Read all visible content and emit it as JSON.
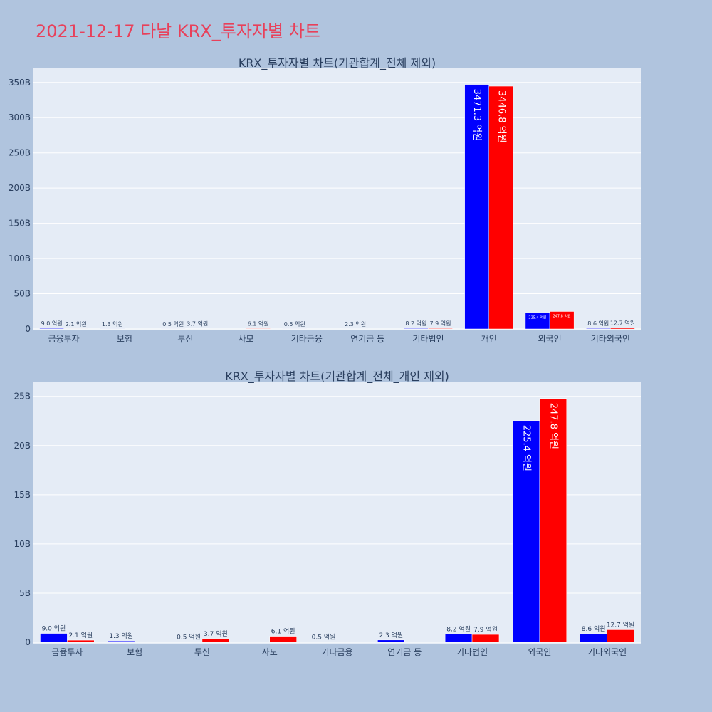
{
  "page": {
    "title": "2021-12-17 다날 KRX_투자자별 차트"
  },
  "colors": {
    "buy": "#0000ff",
    "sell": "#ff0000",
    "plot_bg": "#e5ecf6",
    "page_bg": "#b0c4de",
    "title": "#e8405a"
  },
  "chart_data": [
    {
      "type": "bar",
      "title": "KRX_투자자별 차트(기관합계_전체 제외)",
      "categories": [
        "금융투자",
        "보험",
        "투신",
        "사모",
        "기타금융",
        "연기금 등",
        "기타법인",
        "개인",
        "외국인",
        "기타외국인"
      ],
      "series": [
        {
          "values": [
            900000000,
            130000000,
            50000000,
            0,
            50000000,
            230000000,
            820000000,
            347130000000,
            22540000000,
            860000000
          ],
          "labels": [
            "9.0 억원",
            "1.3 억원",
            "0.5 억원",
            "",
            "0.5 억원",
            "2.3 억원",
            "8.2 억원",
            "3471.3 억원",
            "225.4 억원",
            "8.6 억원"
          ]
        },
        {
          "values": [
            210000000,
            0,
            370000000,
            610000000,
            0,
            0,
            790000000,
            344680000000,
            24780000000,
            1270000000
          ],
          "labels": [
            "2.1 억원",
            "",
            "3.7 억원",
            "6.1 억원",
            "",
            "",
            "7.9 억원",
            "3446.8 억원",
            "247.8 억원",
            "12.7 억원"
          ]
        }
      ],
      "ylim": [
        0,
        370000000000
      ],
      "yticks": [
        0,
        50000000000,
        100000000000,
        150000000000,
        200000000000,
        250000000000,
        300000000000,
        350000000000
      ],
      "ytick_labels": [
        "0",
        "50B",
        "100B",
        "150B",
        "200B",
        "250B",
        "300B",
        "350B"
      ],
      "grid": true
    },
    {
      "type": "bar",
      "title": "KRX_투자자별 차트(기관합계_전체_개인 제외)",
      "categories": [
        "금융투자",
        "보험",
        "투신",
        "사모",
        "기타금융",
        "연기금 등",
        "기타법인",
        "외국인",
        "기타외국인"
      ],
      "series": [
        {
          "values": [
            900000000,
            130000000,
            50000000,
            0,
            50000000,
            230000000,
            820000000,
            22540000000,
            860000000
          ],
          "labels": [
            "9.0 억원",
            "1.3 억원",
            "0.5 억원",
            "",
            "0.5 억원",
            "2.3 억원",
            "8.2 억원",
            "225.4 억원",
            "8.6 억원"
          ]
        },
        {
          "values": [
            210000000,
            0,
            370000000,
            610000000,
            0,
            0,
            790000000,
            24780000000,
            1270000000
          ],
          "labels": [
            "2.1 억원",
            "",
            "3.7 억원",
            "6.1 억원",
            "",
            "",
            "7.9 억원",
            "247.8 억원",
            "12.7 억원"
          ]
        }
      ],
      "ylim": [
        0,
        26500000000
      ],
      "yticks": [
        0,
        5000000000,
        10000000000,
        15000000000,
        20000000000,
        25000000000
      ],
      "ytick_labels": [
        "0",
        "5B",
        "10B",
        "15B",
        "20B",
        "25B"
      ],
      "grid": true
    }
  ]
}
